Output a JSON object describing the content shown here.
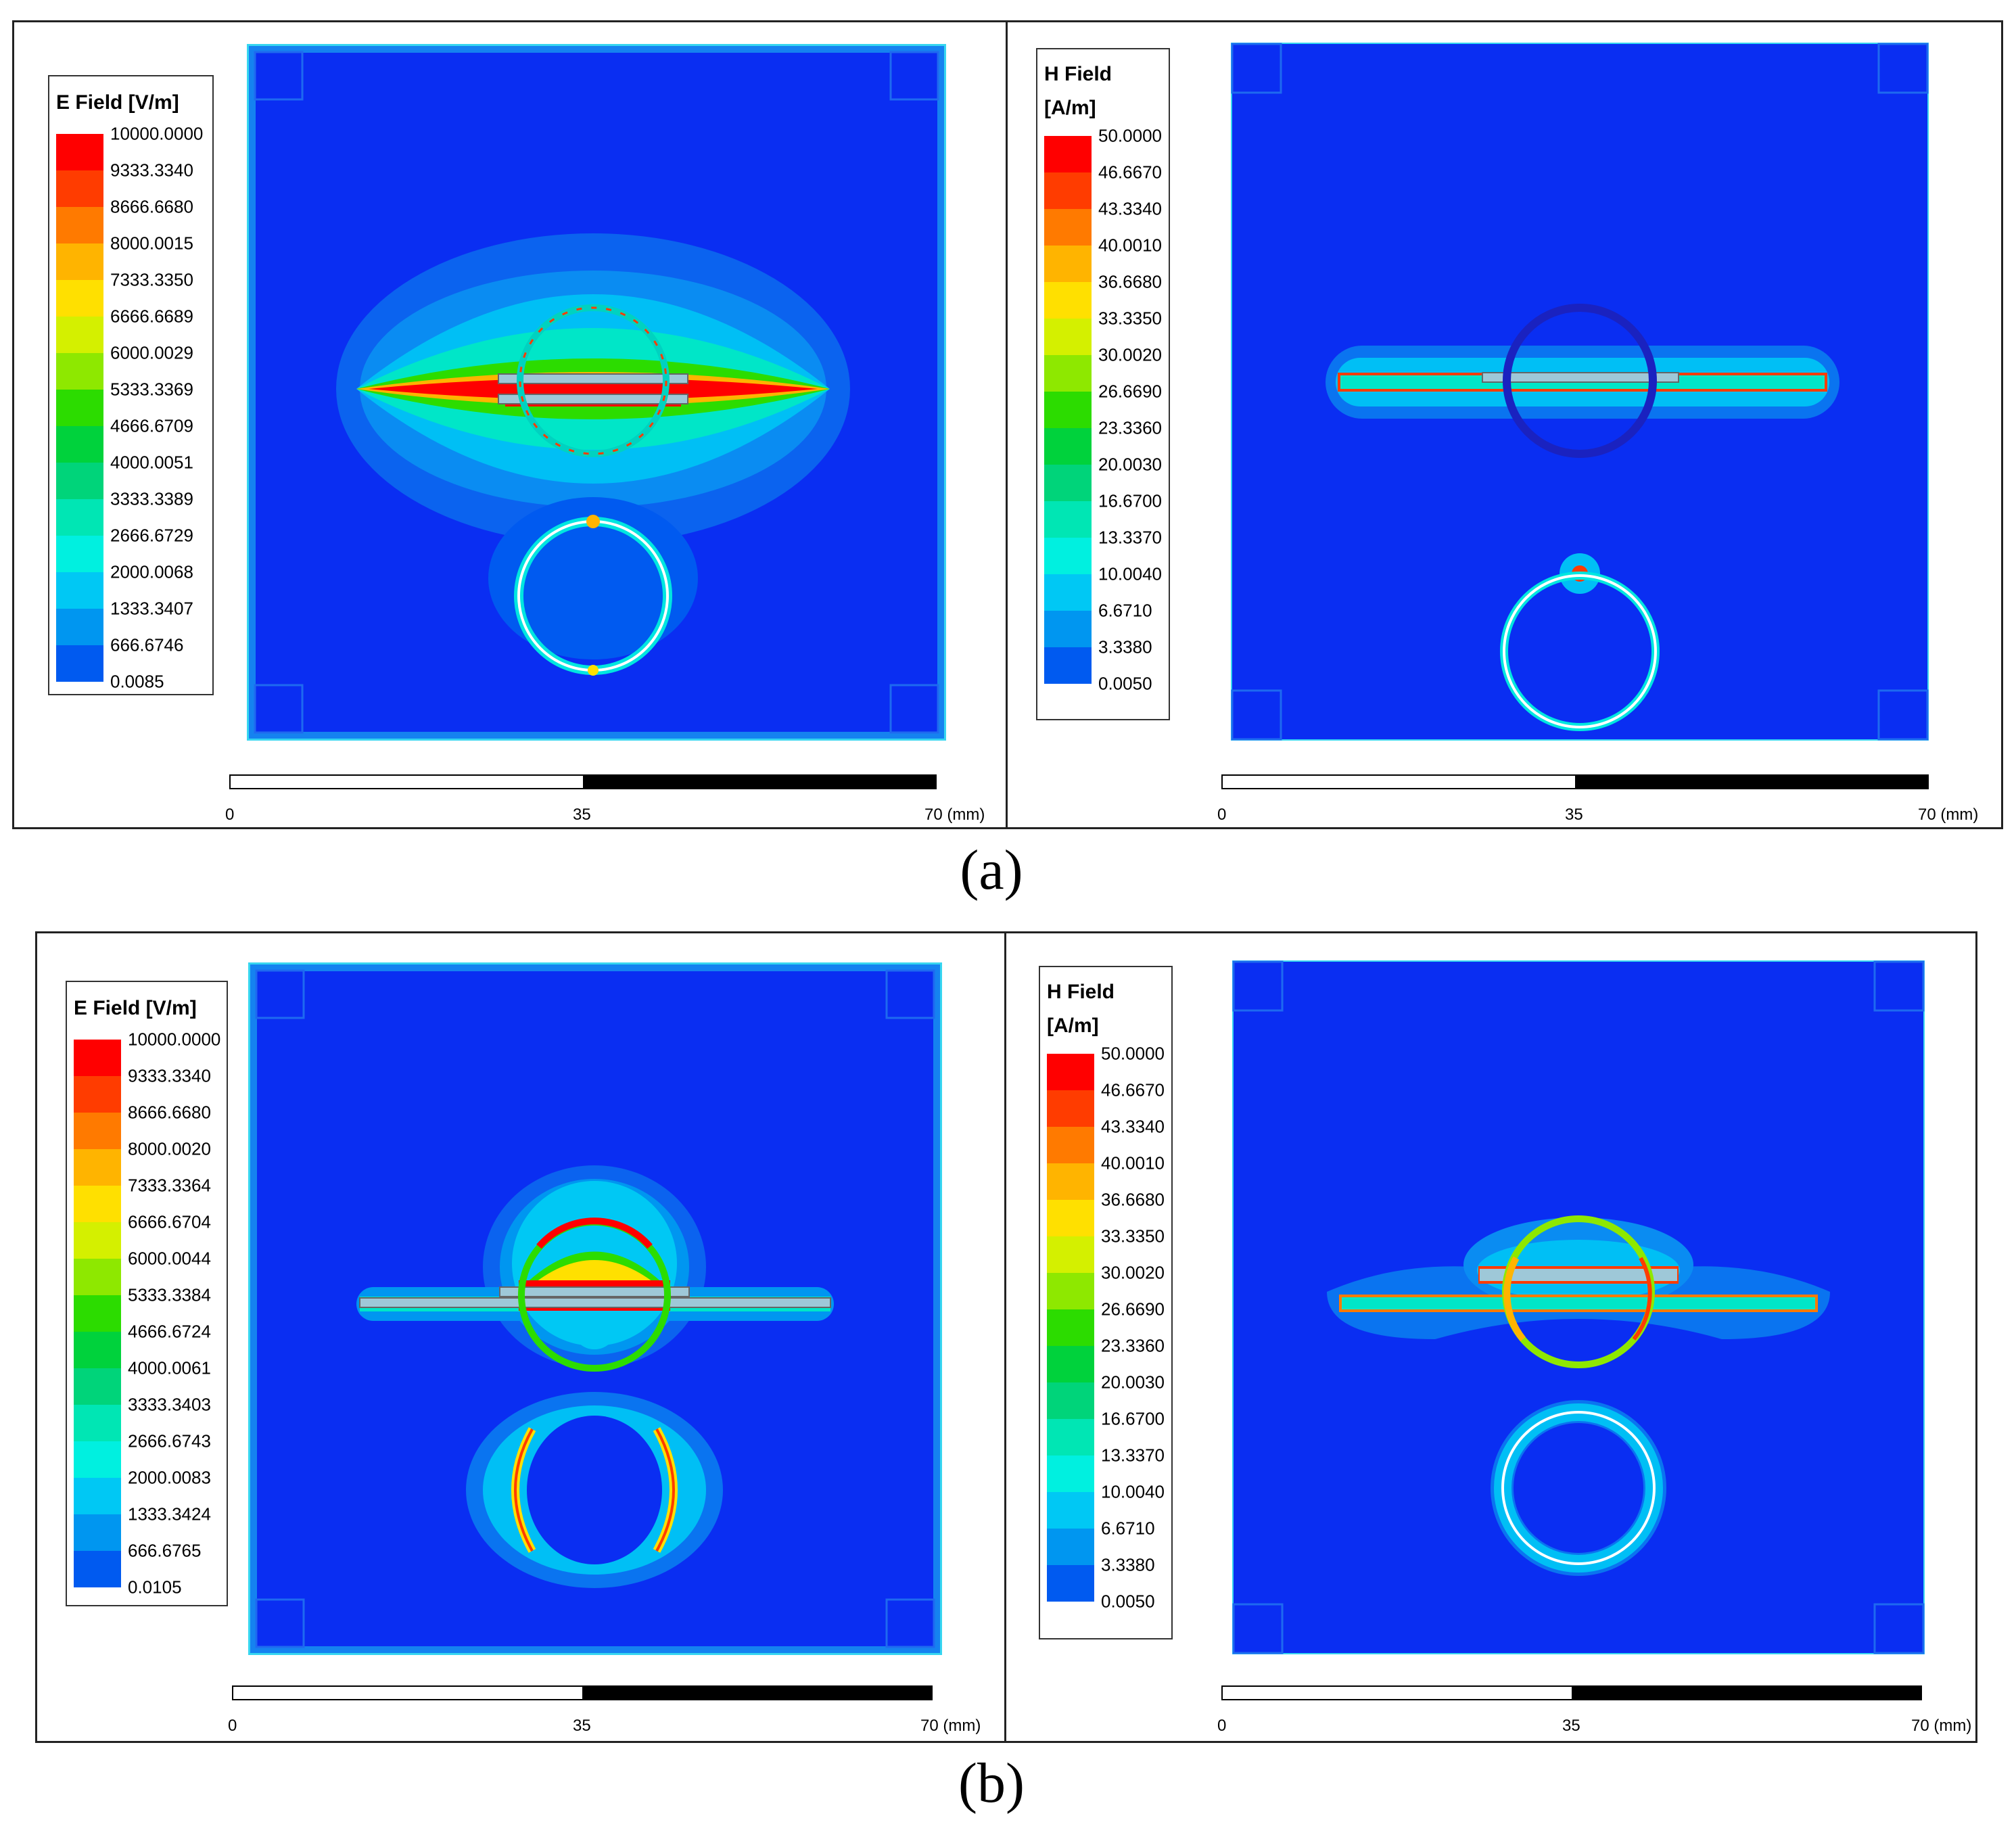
{
  "figures": [
    {
      "caption": "(a)",
      "panels": [
        {
          "field": "E",
          "legend_title_line1": "E Field [V/m]",
          "legend_title_line2": "",
          "legend_values": [
            "10000.0000",
            "9333.3340",
            "8666.6680",
            "8000.0015",
            "7333.3350",
            "6666.6689",
            "6000.0029",
            "5333.3369",
            "4666.6709",
            "4000.0051",
            "3333.3389",
            "2666.6729",
            "2000.0068",
            "1333.3407",
            "666.6746",
            "0.0085"
          ],
          "scale_ticks": [
            "0",
            "35",
            "70 (mm)"
          ]
        },
        {
          "field": "H",
          "legend_title_line1": "H Field",
          "legend_title_line2": "[A/m]",
          "legend_values": [
            "50.0000",
            "46.6670",
            "43.3340",
            "40.0010",
            "36.6680",
            "33.3350",
            "30.0020",
            "26.6690",
            "23.3360",
            "20.0030",
            "16.6700",
            "13.3370",
            "10.0040",
            "6.6710",
            "3.3380",
            "0.0050"
          ],
          "scale_ticks": [
            "0",
            "35",
            "70 (mm)"
          ]
        }
      ]
    },
    {
      "caption": "(b)",
      "panels": [
        {
          "field": "E",
          "legend_title_line1": "E Field [V/m]",
          "legend_title_line2": "",
          "legend_values": [
            "10000.0000",
            "9333.3340",
            "8666.6680",
            "8000.0020",
            "7333.3364",
            "6666.6704",
            "6000.0044",
            "5333.3384",
            "4666.6724",
            "4000.0061",
            "3333.3403",
            "2666.6743",
            "2000.0083",
            "1333.3424",
            "666.6765",
            "0.0105"
          ],
          "scale_ticks": [
            "0",
            "35",
            "70 (mm)"
          ]
        },
        {
          "field": "H",
          "legend_title_line1": "H Field",
          "legend_title_line2": "[A/m]",
          "legend_values": [
            "50.0000",
            "46.6670",
            "43.3340",
            "40.0010",
            "36.6680",
            "33.3350",
            "30.0020",
            "26.6690",
            "23.3360",
            "20.0030",
            "16.6700",
            "13.3370",
            "10.0040",
            "6.6710",
            "3.3380",
            "0.0050"
          ],
          "scale_ticks": [
            "0",
            "35",
            "70 (mm)"
          ]
        }
      ]
    }
  ],
  "colormap": [
    "#ff0000",
    "#ff3c00",
    "#ff7a00",
    "#ffb400",
    "#ffe000",
    "#d4f000",
    "#8ee800",
    "#2cdc00",
    "#00d23c",
    "#00d47a",
    "#00e6b4",
    "#00f0e0",
    "#00c8f4",
    "#0096f0",
    "#005af0",
    "#0000ff"
  ],
  "background_field_color": "#0a2ef2"
}
